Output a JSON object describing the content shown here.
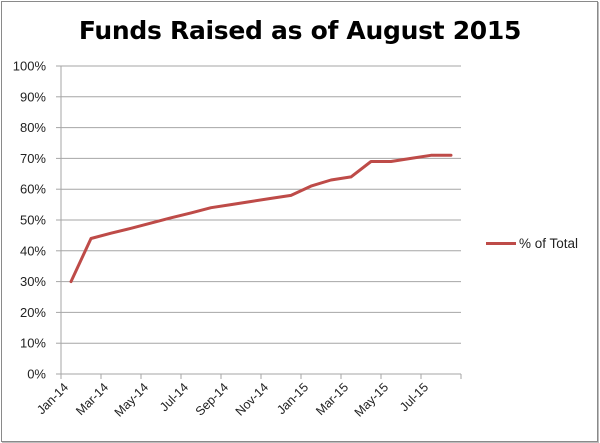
{
  "chart_data": {
    "type": "line",
    "title": "Funds Raised as of August 2015",
    "xlabel": "",
    "ylabel": "",
    "ylim": [
      0,
      100
    ],
    "y_ticks": [
      "0%",
      "10%",
      "20%",
      "30%",
      "40%",
      "50%",
      "60%",
      "70%",
      "80%",
      "90%",
      "100%"
    ],
    "x_tick_labels": [
      "Jan-14",
      "Mar-14",
      "May-14",
      "Jul-14",
      "Sep-14",
      "Nov-14",
      "Jan-15",
      "Mar-15",
      "May-15",
      "Jul-15"
    ],
    "categories": [
      "Jan-14",
      "Feb-14",
      "Mar-14",
      "Apr-14",
      "May-14",
      "Jun-14",
      "Jul-14",
      "Aug-14",
      "Sep-14",
      "Oct-14",
      "Nov-14",
      "Dec-14",
      "Jan-15",
      "Feb-15",
      "Mar-15",
      "Apr-15",
      "May-15",
      "Jun-15",
      "Jul-15",
      "Aug-15"
    ],
    "series": [
      {
        "name": "% of Total",
        "color": "#be4b48",
        "values": [
          30,
          44,
          45.7,
          47.3,
          49,
          50.7,
          52.3,
          54,
          55,
          56,
          57,
          58,
          61,
          63,
          64,
          69,
          69,
          70,
          71,
          71
        ]
      }
    ],
    "grid": true,
    "legend_position": "right"
  },
  "legend": {
    "label": "% of Total"
  }
}
